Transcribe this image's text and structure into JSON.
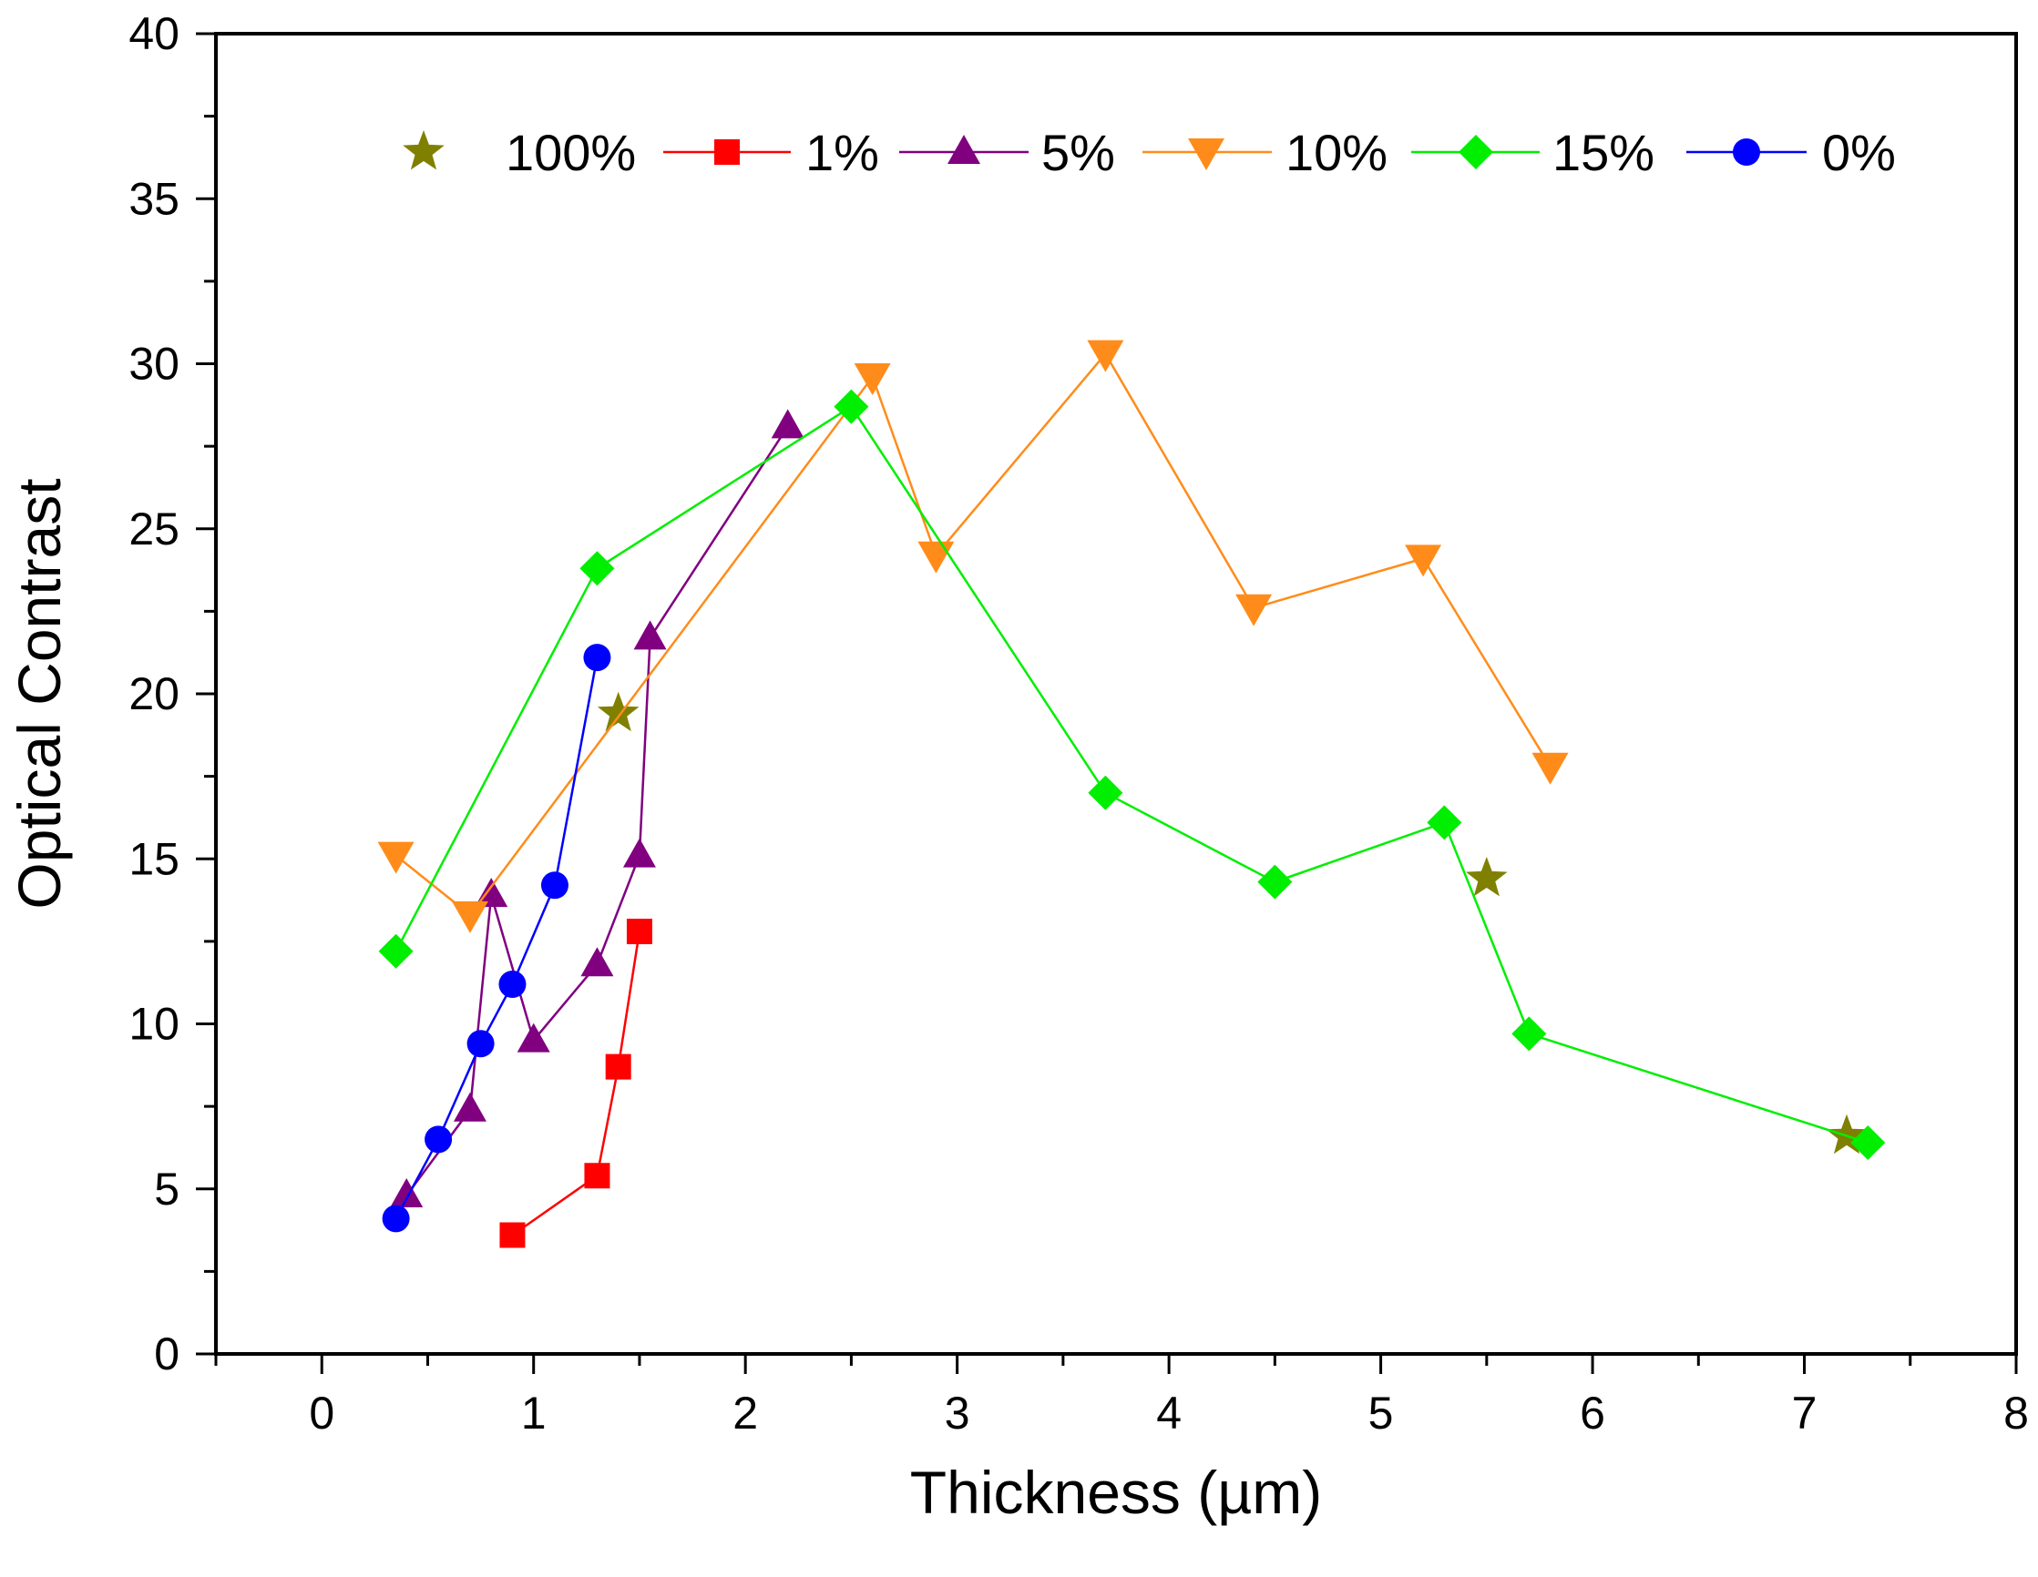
{
  "chart_data": {
    "type": "scatter",
    "title": "",
    "xlabel": "Thickness (µm)",
    "ylabel": "Optical Contrast",
    "xlim": [
      -0.5,
      8
    ],
    "ylim": [
      0,
      40
    ],
    "x_ticks": [
      {
        "value": 0,
        "label": "0"
      },
      {
        "value": 1,
        "label": "1"
      },
      {
        "value": 2,
        "label": "2"
      },
      {
        "value": 3,
        "label": "3"
      },
      {
        "value": 4,
        "label": "4"
      },
      {
        "value": 5,
        "label": "5"
      },
      {
        "value": 6,
        "label": "6"
      },
      {
        "value": 7,
        "label": "7"
      },
      {
        "value": 8,
        "label": "8"
      }
    ],
    "y_ticks": [
      {
        "value": 0,
        "label": "0"
      },
      {
        "value": 5,
        "label": "5"
      },
      {
        "value": 10,
        "label": "10"
      },
      {
        "value": 15,
        "label": "15"
      },
      {
        "value": 20,
        "label": "20"
      },
      {
        "value": 25,
        "label": "25"
      },
      {
        "value": 30,
        "label": "30"
      },
      {
        "value": 35,
        "label": "35"
      },
      {
        "value": 40,
        "label": "40"
      }
    ],
    "grid": false,
    "legend_position": "top",
    "series": [
      {
        "name": "100%",
        "color": "#808000",
        "marker": "star",
        "line": false,
        "x": [
          1.4,
          5.5,
          7.2
        ],
        "y": [
          19.4,
          14.4,
          6.6
        ]
      },
      {
        "name": "1%",
        "color": "#ff0000",
        "marker": "square",
        "line": true,
        "x": [
          0.9,
          1.3,
          1.4,
          1.5
        ],
        "y": [
          3.6,
          5.4,
          8.7,
          12.8
        ]
      },
      {
        "name": "5%",
        "color": "#800080",
        "marker": "triangle-up",
        "line": true,
        "x": [
          0.4,
          0.7,
          0.8,
          1.0,
          1.3,
          1.5,
          1.55,
          2.2
        ],
        "y": [
          4.8,
          7.4,
          13.9,
          9.5,
          11.8,
          15.1,
          21.7,
          28.1
        ]
      },
      {
        "name": "10%",
        "color": "#ff8c1a",
        "marker": "triangle-down",
        "line": true,
        "x": [
          0.35,
          0.7,
          2.6,
          2.9,
          3.7,
          4.4,
          5.2,
          5.8
        ],
        "y": [
          15.1,
          13.3,
          29.6,
          24.2,
          30.3,
          22.6,
          24.1,
          17.8
        ]
      },
      {
        "name": "15%",
        "color": "#00ee00",
        "marker": "diamond",
        "line": true,
        "x": [
          0.35,
          1.3,
          2.5,
          3.7,
          4.5,
          5.3,
          5.7,
          7.3
        ],
        "y": [
          12.2,
          23.8,
          28.7,
          17.0,
          14.3,
          16.1,
          9.7,
          6.4
        ]
      },
      {
        "name": "0%",
        "color": "#0000ff",
        "marker": "circle",
        "line": true,
        "x": [
          0.35,
          0.55,
          0.75,
          0.9,
          1.1,
          1.3
        ],
        "y": [
          4.1,
          6.5,
          9.4,
          11.2,
          14.2,
          21.1
        ]
      }
    ]
  }
}
